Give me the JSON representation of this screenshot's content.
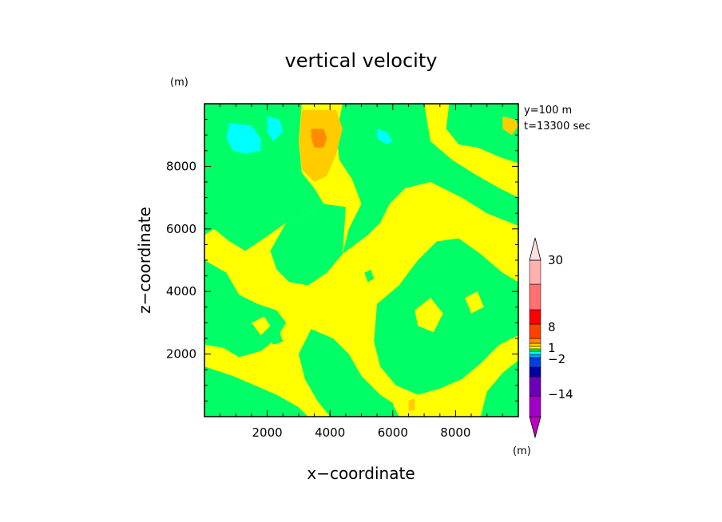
{
  "chart_data": {
    "type": "heatmap",
    "title": "vertical velocity",
    "xlabel": "x−coordinate",
    "ylabel": "z−coordinate",
    "y_unit_label": "(m)",
    "annotations": [
      "y=100 m",
      "t=13300 sec"
    ],
    "xlim": [
      0,
      10000
    ],
    "ylim": [
      0,
      10000
    ],
    "x_ticks": [
      2000,
      4000,
      6000,
      8000
    ],
    "y_ticks": [
      2000,
      4000,
      6000,
      8000
    ],
    "grid": false,
    "colorbar": {
      "unit_label": "(m)",
      "tick_labels": [
        "30",
        "8",
        "1",
        "−2",
        "−14"
      ],
      "colors": [
        "#c000c0",
        "#a000c8",
        "#6a00b8",
        "#0000a0",
        "#0040e0",
        "#00a0ff",
        "#00ffff",
        "#00ff66",
        "#ffff00",
        "#ffcc00",
        "#ff8c00",
        "#ff4000",
        "#ff0000",
        "#ff7070",
        "#ffb0b0",
        "#ffe0e0"
      ],
      "orientation": "vertical"
    },
    "legend": "right",
    "fill_colors": {
      "background": "#ffff00",
      "near_zero_negative": "#00ff66",
      "moderate_positive": "#ffcc00",
      "strong_positive": "#ff8c00",
      "moderate_negative": "#00ffff"
    }
  }
}
